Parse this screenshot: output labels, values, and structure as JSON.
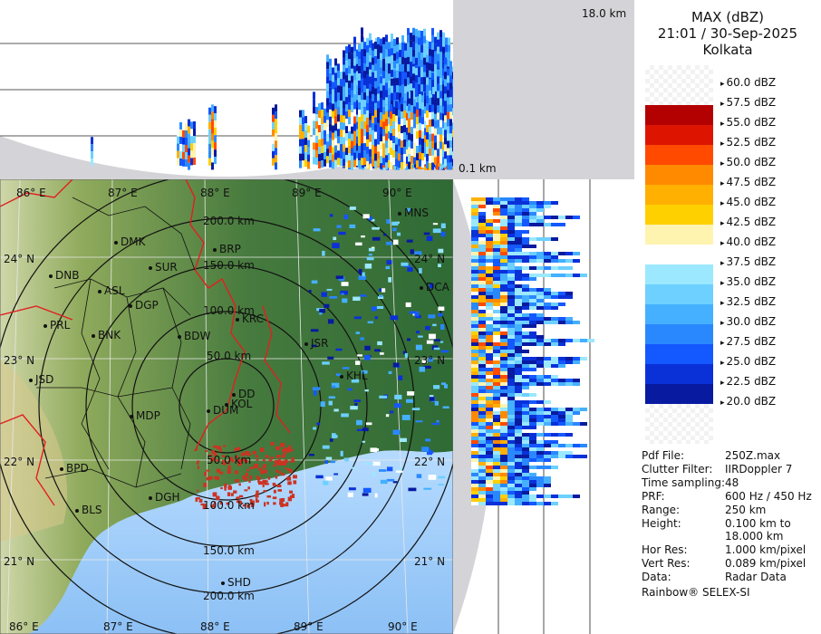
{
  "header": {
    "product": "MAX (dBZ)",
    "timestamp": "21:01 / 30-Sep-2025",
    "station": "Kolkata"
  },
  "height_axis": {
    "top_label": "18.0 km",
    "bottom_label": "0.1 km"
  },
  "legend": {
    "entries": [
      {
        "label": "60.0 dBZ",
        "color": "#ffffff"
      },
      {
        "label": "57.5 dBZ",
        "color": "#ffffff"
      },
      {
        "label": "55.0 dBZ",
        "color": "#b30000"
      },
      {
        "label": "52.5 dBZ",
        "color": "#dd1500"
      },
      {
        "label": "50.0 dBZ",
        "color": "#ff4a00"
      },
      {
        "label": "47.5 dBZ",
        "color": "#ff8a00"
      },
      {
        "label": "45.0 dBZ",
        "color": "#ffb000"
      },
      {
        "label": "42.5 dBZ",
        "color": "#ffd000"
      },
      {
        "label": "40.0 dBZ",
        "color": "#fff3b0"
      },
      {
        "label": "37.5 dBZ",
        "color": "#ffffff"
      },
      {
        "label": "35.0 dBZ",
        "color": "#9be8ff"
      },
      {
        "label": "32.5 dBZ",
        "color": "#6dd0ff"
      },
      {
        "label": "30.0 dBZ",
        "color": "#45b0ff"
      },
      {
        "label": "27.5 dBZ",
        "color": "#2a88ff"
      },
      {
        "label": "25.0 dBZ",
        "color": "#1458ff"
      },
      {
        "label": "22.5 dBZ",
        "color": "#0a30d8"
      },
      {
        "label": "20.0 dBZ",
        "color": "#081aa0"
      }
    ]
  },
  "info": [
    {
      "key": "Pdf File:",
      "value": "250Z.max"
    },
    {
      "key": "Clutter Filter:",
      "value": "IIRDoppler 7"
    },
    {
      "key": "Time sampling:",
      "value": "48"
    },
    {
      "key": "PRF:",
      "value": "600 Hz / 450 Hz"
    },
    {
      "key": "Range:",
      "value": "250 km"
    },
    {
      "key": "Height:",
      "value": "0.100 km to 18.000 km"
    },
    {
      "key": "Hor Res:",
      "value": "1.000 km/pixel"
    },
    {
      "key": "Vert Res:",
      "value": "0.089 km/pixel"
    },
    {
      "key": "Data:",
      "value": "Radar Data"
    }
  ],
  "footer": "Rainbow® SELEX-SI",
  "map": {
    "lon_labels_top": [
      "86° E",
      "87° E",
      "88° E",
      "89° E",
      "90° E"
    ],
    "lon_labels_bottom": [
      "86° E",
      "87° E",
      "88° E",
      "89° E",
      "90° E"
    ],
    "lat_labels_left": [
      "24° N",
      "23° N",
      "22° N",
      "21° N"
    ],
    "lat_labels_right": [
      "24° N",
      "23° N",
      "22° N",
      "21° N"
    ],
    "range_labels_upper": [
      "200.0 km",
      "150.0 km",
      "100.0 km",
      "50.0 km"
    ],
    "range_labels_lower": [
      "50.0 km",
      "100.0 km",
      "150.0 km",
      "200.0 km"
    ],
    "stations": [
      "MNS",
      "DMK",
      "BRP",
      "DNB",
      "SUR",
      "ASL",
      "DCA",
      "DGP",
      "KRC",
      "PRL",
      "BNK",
      "BDW",
      "JSR",
      "KHL",
      "JSD",
      "DD",
      "KOL",
      "DUM",
      "MDP",
      "BPD",
      "DGH",
      "BLS",
      "SHD"
    ]
  }
}
